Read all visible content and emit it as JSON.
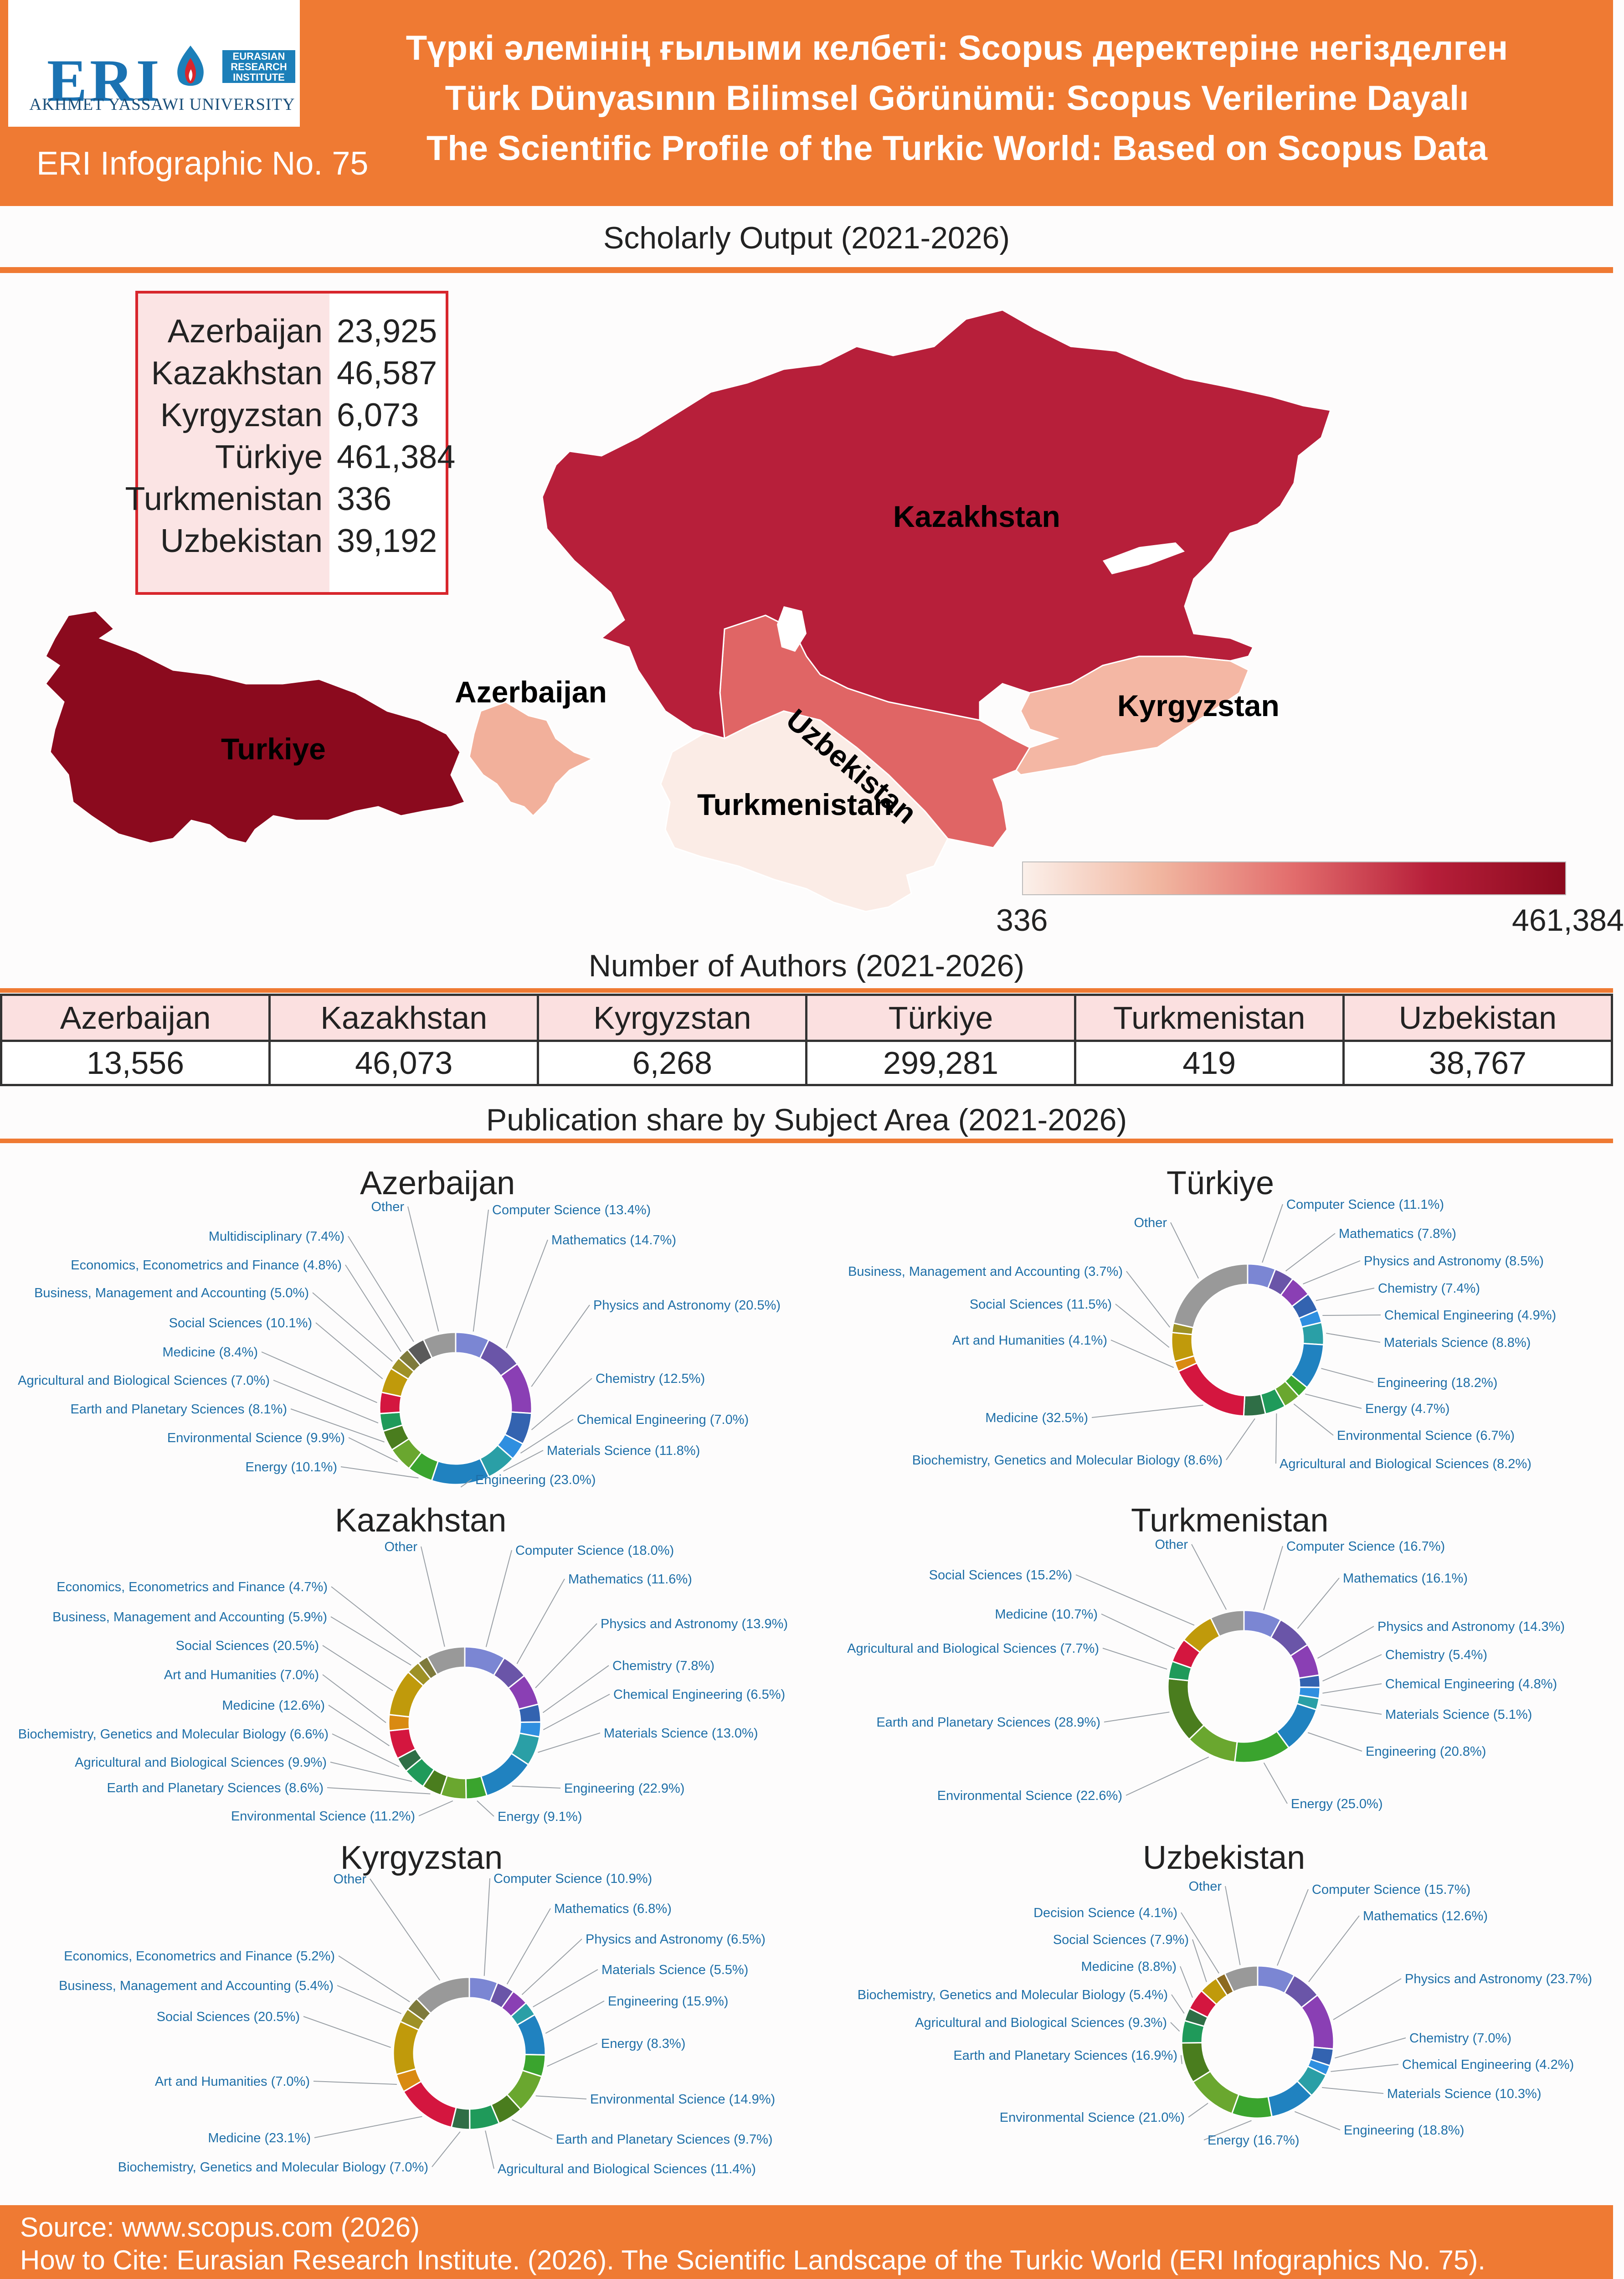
{
  "header": {
    "logo": {
      "initials": "ERI",
      "band": [
        "EURASIAN",
        "RESEARCH",
        "INSTITUTE"
      ],
      "university": "AKHMET YASSAWI UNIVERSITY"
    },
    "infographic_number": "ERI Infographic No. 75",
    "title_kk": "Түркі әлемінің ғылыми келбеті: Scopus деректеріне негізделген",
    "title_tr": "Türk Dünyasının Bilimsel Görünümü: Scopus Verilerine Dayalı",
    "title_en": "The Scientific Profile of the Turkic World: Based on Scopus Data"
  },
  "sections": {
    "output_title": "Scholarly Output (2021-2026)",
    "authors_title": "Number of Authors (2021-2026)",
    "share_title": "Publication share by Subject Area (2021-2026)"
  },
  "map": {
    "labels": {
      "kazakhstan": "Kazakhstan",
      "uzbekistan": "Uzbekistan",
      "kyrgyzstan": "Kyrgyzstan",
      "azerbaijan": "Azerbaijan",
      "turkmenistan": "Turkmenistan",
      "turkiye": "Turkiye"
    },
    "legend_min": "336",
    "legend_max": "461,384",
    "colors": {
      "turkiye": "#8b0a1e",
      "kazakhstan": "#b71f3a",
      "uzbekistan": "#e06565",
      "azerbaijan": "#f2b09b",
      "kyrgyzstan": "#f4b7a4",
      "turkmenistan": "#fbece6"
    }
  },
  "chart_data": [
    {
      "type": "table",
      "title": "Scholarly Output (2021-2026)",
      "rows": [
        {
          "country": "Azerbaijan",
          "value": "23,925"
        },
        {
          "country": "Kazakhstan",
          "value": "46,587"
        },
        {
          "country": "Kyrgyzstan",
          "value": "6,073"
        },
        {
          "country": "Türkiye",
          "value": "461,384"
        },
        {
          "country": "Turkmenistan",
          "value": "336"
        },
        {
          "country": "Uzbekistan",
          "value": "39,192"
        }
      ]
    },
    {
      "type": "table",
      "title": "Number of Authors (2021-2026)",
      "columns": [
        "Azerbaijan",
        "Kazakhstan",
        "Kyrgyzstan",
        "Türkiye",
        "Turkmenistan",
        "Uzbekistan"
      ],
      "values": [
        "13,556",
        "46,073",
        "6,268",
        "299,281",
        "419",
        "38,767"
      ]
    },
    {
      "type": "pie",
      "title": "Azerbaijan",
      "labels": [
        "Computer Science (13.4%)",
        "Mathematics (14.7%)",
        "Physics and Astronomy (20.5%)",
        "Chemistry (12.5%)",
        "Chemical Engineering (7.0%)",
        "Materials Science (11.8%)",
        "Engineering (23.0%)",
        "Energy (10.1%)",
        "Environmental Science (9.9%)",
        "Earth and Planetary Sciences (8.1%)",
        "Agricultural and Biological Sciences (7.0%)",
        "Medicine (8.4%)",
        "Social Sciences (10.1%)",
        "Business, Management and Accounting (5.0%)",
        "Economics, Econometrics and Finance (4.8%)",
        "Multidisciplinary (7.4%)",
        "Other"
      ],
      "values": [
        13.4,
        14.7,
        20.5,
        12.5,
        7.0,
        11.8,
        23.0,
        10.1,
        9.9,
        8.1,
        7.0,
        8.4,
        10.1,
        5.0,
        4.8,
        7.4,
        13.0
      ]
    },
    {
      "type": "pie",
      "title": "Türkiye",
      "labels": [
        "Computer Science (11.1%)",
        "Mathematics (7.8%)",
        "Physics and Astronomy (8.5%)",
        "Chemistry (7.4%)",
        "Chemical Engineering (4.9%)",
        "Materials Science (8.8%)",
        "Engineering (18.2%)",
        "Energy (4.7%)",
        "Environmental Science (6.7%)",
        "Agricultural and Biological Sciences (8.2%)",
        "Biochemistry, Genetics and Molecular Biology (8.6%)",
        "Medicine (32.5%)",
        "Art and Humanities (4.1%)",
        "Social Sciences (11.5%)",
        "Business, Management and Accounting (3.7%)",
        "Other"
      ],
      "values": [
        11.1,
        7.8,
        8.5,
        7.4,
        4.9,
        8.8,
        18.2,
        4.7,
        6.7,
        8.2,
        8.6,
        32.5,
        4.1,
        11.5,
        3.7,
        40.0
      ]
    },
    {
      "type": "pie",
      "title": "Kazakhstan",
      "labels": [
        "Computer Science (18.0%)",
        "Mathematics (11.6%)",
        "Physics and Astronomy (13.9%)",
        "Chemistry (7.8%)",
        "Chemical Engineering (6.5%)",
        "Materials Science (13.0%)",
        "Engineering (22.9%)",
        "Energy (9.1%)",
        "Environmental Science (11.2%)",
        "Earth and Planetary Sciences (8.6%)",
        "Agricultural and Biological Sciences (9.9%)",
        "Biochemistry, Genetics and Molecular Biology (6.6%)",
        "Medicine (12.6%)",
        "Art and Humanities (7.0%)",
        "Social Sciences (20.5%)",
        "Business, Management and Accounting (5.9%)",
        "Economics, Econometrics and Finance (4.7%)",
        "Other"
      ],
      "values": [
        18.0,
        11.6,
        13.9,
        7.8,
        6.5,
        13.0,
        22.9,
        9.1,
        11.2,
        8.6,
        9.9,
        6.6,
        12.6,
        7.0,
        20.5,
        5.9,
        4.7,
        17.0
      ]
    },
    {
      "type": "pie",
      "title": "Turkmenistan",
      "labels": [
        "Computer Science (16.7%)",
        "Mathematics (16.1%)",
        "Physics and Astronomy (14.3%)",
        "Chemistry (5.4%)",
        "Chemical Engineering (4.8%)",
        "Materials Science (5.1%)",
        "Engineering (20.8%)",
        "Energy (25.0%)",
        "Environmental Science (22.6%)",
        "Earth and Planetary Sciences (28.9%)",
        "Agricultural and Biological Sciences (7.7%)",
        "Medicine (10.7%)",
        "Social Sciences (15.2%)",
        "Other"
      ],
      "values": [
        16.7,
        16.1,
        14.3,
        5.4,
        4.8,
        5.1,
        20.8,
        25.0,
        22.6,
        28.9,
        7.7,
        10.7,
        15.2,
        15.0
      ]
    },
    {
      "type": "pie",
      "title": "Kyrgyzstan",
      "labels": [
        "Computer Science (10.9%)",
        "Mathematics (6.8%)",
        "Physics and Astronomy (6.5%)",
        "Materials Science (5.5%)",
        "Engineering (15.9%)",
        "Energy (8.3%)",
        "Environmental Science (14.9%)",
        "Earth and Planetary Sciences (9.7%)",
        "Agricultural and Biological Sciences (11.4%)",
        "Biochemistry, Genetics and Molecular Biology (7.0%)",
        "Medicine (23.1%)",
        "Art and Humanities (7.0%)",
        "Social Sciences (20.5%)",
        "Business, Management and Accounting (5.4%)",
        "Economics, Econometrics and Finance (5.2%)",
        "Other"
      ],
      "values": [
        10.9,
        6.8,
        6.5,
        5.5,
        15.9,
        8.3,
        14.9,
        9.7,
        11.4,
        7.0,
        23.1,
        7.0,
        20.5,
        5.4,
        5.2,
        22.0
      ]
    },
    {
      "type": "pie",
      "title": "Uzbekistan",
      "labels": [
        "Computer Science (15.7%)",
        "Mathematics (12.6%)",
        "Physics and Astronomy (23.7%)",
        "Chemistry (7.0%)",
        "Chemical Engineering (4.2%)",
        "Materials Science (10.3%)",
        "Engineering (18.8%)",
        "Energy (16.7%)",
        "Environmental Science (21.0%)",
        "Earth and Planetary Sciences (16.9%)",
        "Agricultural and Biological Sciences (9.3%)",
        "Biochemistry, Genetics and Molecular Biology (5.4%)",
        "Medicine (8.8%)",
        "Social Sciences (7.9%)",
        "Decision Science (4.1%)",
        "Other"
      ],
      "values": [
        15.7,
        12.6,
        23.7,
        7.0,
        4.2,
        10.3,
        18.8,
        16.7,
        21.0,
        16.9,
        9.3,
        5.4,
        8.8,
        7.9,
        4.1,
        14.0
      ]
    }
  ],
  "palette": {
    "Computer Science": "#7b86d3",
    "Mathematics": "#6a55a8",
    "Physics and Astronomy": "#8a3fb4",
    "Chemistry": "#3363b0",
    "Chemical Engineering": "#2f8fe0",
    "Materials Science": "#2a9fa6",
    "Engineering": "#2082c0",
    "Energy": "#3aa42e",
    "Environmental Science": "#6aa72f",
    "Earth and Planetary Sciences": "#4a7d1e",
    "Agricultural and Biological Sciences": "#1f9a5a",
    "Biochemistry, Genetics and Molecular Biology": "#2f6e46",
    "Medicine": "#d4163f",
    "Art and Humanities": "#d98a12",
    "Social Sciences": "#c09a0b",
    "Business, Management and Accounting": "#9e9126",
    "Economics, Econometrics and Finance": "#7e7a3c",
    "Multidisciplinary": "#5a5a5a",
    "Decision Science": "#8c6a20",
    "Other": "#999999"
  },
  "footer": {
    "source": "Source: www.scopus.com (2026)",
    "cite": "How to Cite: Eurasian Research Institute. (2026). The Scientific Landscape of the Turkic World (ERI Infographics No. 75)."
  }
}
